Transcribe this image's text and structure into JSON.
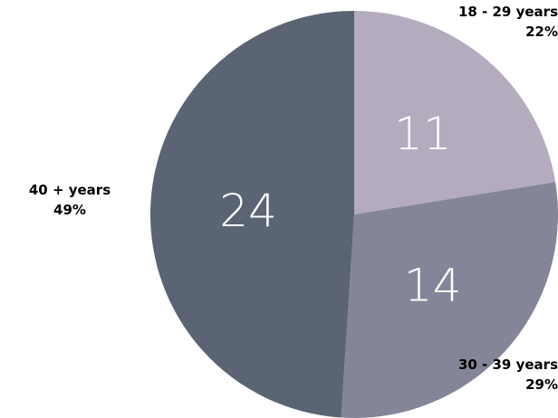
{
  "chart_data": {
    "type": "pie",
    "slices": [
      {
        "name": "18 - 29 years",
        "value": 11,
        "percent": "22%",
        "color": "#b4abbf"
      },
      {
        "name": "30 - 39 years",
        "value": 14,
        "percent": "29%",
        "color": "#848598"
      },
      {
        "name": "40 + years",
        "value": 24,
        "percent": "49%",
        "color": "#5a6472"
      }
    ],
    "title": "",
    "legend": "none"
  }
}
